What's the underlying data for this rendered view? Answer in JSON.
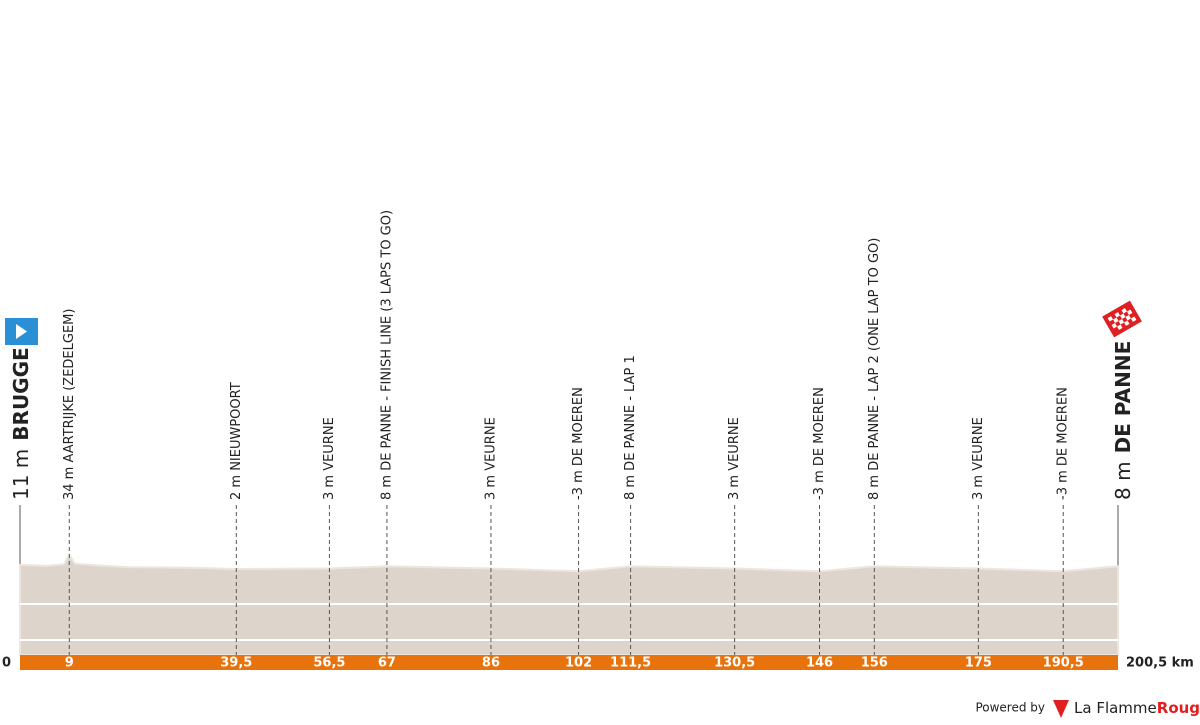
{
  "chart_data": {
    "type": "profile",
    "start": {
      "altitude": "11 m",
      "name": "BRUGGE"
    },
    "finish": {
      "altitude": "8 m",
      "name": "DE PANNE"
    },
    "waypoints": [
      {
        "km": 9,
        "label": "34 m AARTRIJKE (ZEDELGEM)"
      },
      {
        "km": 39.5,
        "label": "2 m NIEUWPOORT"
      },
      {
        "km": 56.5,
        "label": "3 m VEURNE"
      },
      {
        "km": 67,
        "label": "8 m DE PANNE - FINISH LINE (3 LAPS TO GO)"
      },
      {
        "km": 86,
        "label": "3 m VEURNE"
      },
      {
        "km": 102,
        "label": "-3 m DE MOEREN"
      },
      {
        "km": 111.5,
        "label": "8 m DE PANNE - LAP 1"
      },
      {
        "km": 130.5,
        "label": "3 m VEURNE"
      },
      {
        "km": 146,
        "label": "-3 m DE MOEREN"
      },
      {
        "km": 156,
        "label": "8 m DE PANNE - LAP 2 (ONE LAP TO GO)"
      },
      {
        "km": 175,
        "label": "3 m VEURNE"
      },
      {
        "km": 190.5,
        "label": "-3 m DE MOEREN"
      }
    ],
    "xlim": [
      0,
      200.5
    ],
    "xticks": [
      0,
      9,
      {
        "value": 39.5,
        "label": "39,5"
      },
      {
        "value": 56.5,
        "label": "56,5"
      },
      67,
      86,
      102,
      {
        "value": 111.5,
        "label": "111,5"
      },
      {
        "value": 130.5,
        "label": "130,5"
      },
      146,
      156,
      175,
      {
        "value": 190.5,
        "label": "190,5"
      },
      {
        "value": 200.5,
        "label": "200,5 km"
      }
    ],
    "x": [
      0,
      5,
      8,
      9,
      10,
      14,
      20,
      30,
      39.5,
      56.5,
      67,
      86,
      102,
      111.5,
      130.5,
      146,
      156,
      175,
      190.5,
      200.5
    ],
    "elevation": [
      11,
      9,
      12,
      34,
      14,
      10,
      6,
      5,
      2,
      3,
      8,
      3,
      -3,
      8,
      3,
      -3,
      8,
      3,
      -3,
      8
    ],
    "ylim": [
      -190,
      80
    ],
    "fill_color": "#ddd5cc",
    "band_color": "#e8720c"
  },
  "footer": {
    "powered_by": "Powered by",
    "brand": "La Flamme",
    "brand_accent": "Rouge"
  }
}
